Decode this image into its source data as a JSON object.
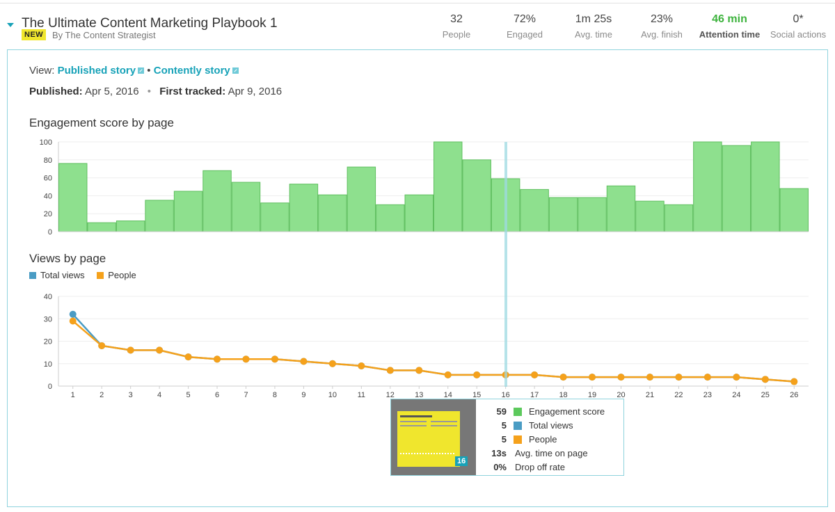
{
  "header": {
    "title": "The Ultimate Content Marketing Playbook 1",
    "badge": "NEW",
    "author": "By The Content Strategist",
    "stats": [
      {
        "value": "32",
        "label": "People"
      },
      {
        "value": "72%",
        "label": "Engaged"
      },
      {
        "value": "1m 25s",
        "label": "Avg. time"
      },
      {
        "value": "23%",
        "label": "Avg. finish"
      },
      {
        "value": "46 min",
        "label": "Attention time"
      },
      {
        "value": "0*",
        "label": "Social actions"
      }
    ]
  },
  "panel": {
    "view_label": "View:",
    "published_story_link": "Published story",
    "separator": "•",
    "contently_story_link": "Contently story",
    "published_label": "Published:",
    "published_date": "Apr 5, 2016",
    "first_tracked_label": "First tracked:",
    "first_tracked_date": "Apr 9, 2016"
  },
  "colors": {
    "accent": "#17a2b8",
    "engagement_bar": "#8ee08e",
    "engagement_bar_stroke": "#5fbf5f",
    "total_views": "#4a9cc4",
    "people": "#f5a11b",
    "green_stat": "#3db33d"
  },
  "chart_data": [
    {
      "type": "bar",
      "title": "Engagement score by page",
      "categories": [
        "1",
        "2",
        "3",
        "4",
        "5",
        "6",
        "7",
        "8",
        "9",
        "10",
        "11",
        "12",
        "13",
        "14",
        "15",
        "16",
        "17",
        "18",
        "19",
        "20",
        "21",
        "22",
        "23",
        "24",
        "25",
        "26"
      ],
      "values": [
        76,
        10,
        12,
        35,
        45,
        68,
        55,
        32,
        53,
        41,
        72,
        30,
        41,
        100,
        80,
        59,
        47,
        38,
        38,
        51,
        34,
        30,
        100,
        96,
        100,
        48
      ],
      "yticks": [
        "0",
        "20",
        "40",
        "60",
        "80",
        "100"
      ],
      "ylim": [
        0,
        100
      ],
      "highlight_page": 16
    },
    {
      "type": "line",
      "title": "Views by page",
      "x": [
        "1",
        "2",
        "3",
        "4",
        "5",
        "6",
        "7",
        "8",
        "9",
        "10",
        "11",
        "12",
        "13",
        "14",
        "15",
        "16",
        "17",
        "18",
        "19",
        "20",
        "21",
        "22",
        "23",
        "24",
        "25",
        "26"
      ],
      "series": [
        {
          "name": "Total views",
          "values": [
            32,
            18,
            16,
            16,
            13,
            12,
            12,
            12,
            11,
            10,
            9,
            7,
            7,
            5,
            5,
            5,
            5,
            4,
            4,
            4,
            4,
            4,
            4,
            4,
            3,
            2
          ]
        },
        {
          "name": "People",
          "values": [
            29,
            18,
            16,
            16,
            13,
            12,
            12,
            12,
            11,
            10,
            9,
            7,
            7,
            5,
            5,
            5,
            5,
            4,
            4,
            4,
            4,
            4,
            4,
            4,
            3,
            2
          ]
        }
      ],
      "yticks": [
        "0",
        "10",
        "20",
        "30",
        "40"
      ],
      "ylim": [
        0,
        40
      ]
    }
  ],
  "tooltip": {
    "page": "16",
    "rows": [
      {
        "value": "59",
        "label": "Engagement score",
        "color": "#5cc95c"
      },
      {
        "value": "5",
        "label": "Total views",
        "color": "#4a9cc4"
      },
      {
        "value": "5",
        "label": "People",
        "color": "#f5a11b"
      },
      {
        "value": "13s",
        "label": "Avg. time on page"
      },
      {
        "value": "0%",
        "label": "Drop off rate"
      }
    ]
  }
}
